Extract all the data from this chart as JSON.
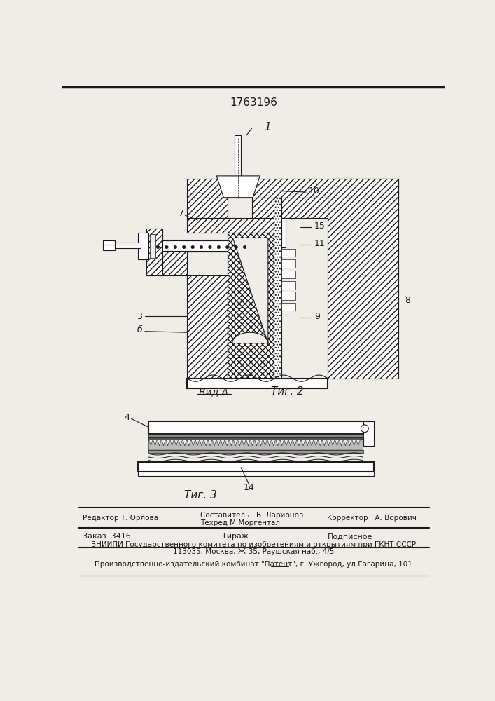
{
  "patent_number": "1763196",
  "background_color": "#f0ede8",
  "line_color": "#1a1a1a",
  "fig2_label": "Τиг. 2",
  "fig3_label": "Τиг. 3",
  "vida_label": "Вид A",
  "label_1": "1",
  "label_3": "3",
  "label_4": "4",
  "label_6": "б",
  "label_7": "7",
  "label_8": "8",
  "label_9": "9",
  "label_10": "10",
  "label_11": "11",
  "label_14": "14",
  "label_15": "15",
  "editor_line": "Редактор Т. Орлова",
  "composer_line": "Составитель   В. Ларионов",
  "techred_line": "Техред М.Моргентал",
  "corrector_line": "Корректор   А. Ворович",
  "zakaz_line": "Заказ  3416",
  "tirazh_line": "Тираж",
  "podpisnoe_line": "Подписное",
  "vnipi_line": "ВНИИПИ Государственного комитета по изобретениям и открытиям при ГКНТ СССР",
  "address_line": "113035, Москва, Ж-35, Раушская наб., 4/5",
  "publisher_line": "Производственно-издательский комбинат \"Патент\", г. Ужгород, ул.Гагарина, 101"
}
